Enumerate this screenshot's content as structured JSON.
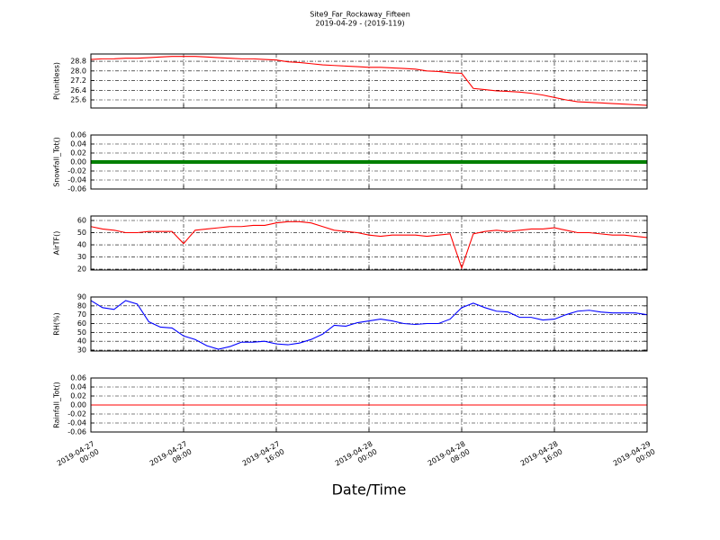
{
  "chart_data": {
    "type": "multi-panel",
    "title": "Site9_Far_Rockaway_Fifteen",
    "subtitle": "2019-04-29 - (2019-119)",
    "xlabel": "Date/Time",
    "xlim": [
      "2019-04-27 00:00",
      "2019-04-29 00:00"
    ],
    "xticks": [
      "2019-04-27 00:00",
      "2019-04-27 08:00",
      "2019-04-27 16:00",
      "2019-04-28 00:00",
      "2019-04-28 08:00",
      "2019-04-28 16:00",
      "2019-04-29 00:00"
    ],
    "grid": true,
    "x": [
      "2019-04-27 00:00",
      "2019-04-27 01:00",
      "2019-04-27 02:00",
      "2019-04-27 03:00",
      "2019-04-27 04:00",
      "2019-04-27 05:00",
      "2019-04-27 06:00",
      "2019-04-27 07:00",
      "2019-04-27 08:00",
      "2019-04-27 09:00",
      "2019-04-27 10:00",
      "2019-04-27 11:00",
      "2019-04-27 12:00",
      "2019-04-27 13:00",
      "2019-04-27 14:00",
      "2019-04-27 15:00",
      "2019-04-27 16:00",
      "2019-04-27 17:00",
      "2019-04-27 18:00",
      "2019-04-27 19:00",
      "2019-04-27 20:00",
      "2019-04-27 21:00",
      "2019-04-27 22:00",
      "2019-04-27 23:00",
      "2019-04-28 00:00",
      "2019-04-28 01:00",
      "2019-04-28 02:00",
      "2019-04-28 03:00",
      "2019-04-28 04:00",
      "2019-04-28 05:00",
      "2019-04-28 06:00",
      "2019-04-28 07:00",
      "2019-04-28 08:00",
      "2019-04-28 09:00",
      "2019-04-28 10:00",
      "2019-04-28 11:00",
      "2019-04-28 12:00",
      "2019-04-28 13:00",
      "2019-04-28 14:00",
      "2019-04-28 15:00",
      "2019-04-28 16:00",
      "2019-04-28 17:00",
      "2019-04-28 18:00",
      "2019-04-28 19:00",
      "2019-04-28 20:00",
      "2019-04-28 21:00",
      "2019-04-28 22:00",
      "2019-04-28 23:00",
      "2019-04-29 00:00"
    ],
    "panels": [
      {
        "type": "line",
        "ylabel": "P(unitless)",
        "ylim": [
          24.93,
          29.4
        ],
        "yticks": [
          25.6,
          26.4,
          27.2,
          {
            "value": 28.0,
            "label": "28.0"
          },
          28.8
        ],
        "series": [
          {
            "color": "#ff0000",
            "values": [
              28.95,
              29.0,
              29.0,
              29.05,
              29.05,
              29.1,
              29.15,
              29.2,
              29.2,
              29.2,
              29.15,
              29.1,
              29.05,
              29.0,
              29.0,
              28.95,
              28.9,
              28.75,
              28.7,
              28.6,
              28.5,
              28.45,
              28.4,
              28.35,
              28.3,
              28.3,
              28.25,
              28.2,
              28.15,
              28.0,
              27.95,
              27.85,
              27.8,
              26.55,
              26.45,
              26.35,
              26.3,
              26.25,
              26.15,
              26.0,
              25.8,
              25.6,
              25.45,
              25.4,
              25.35,
              25.3,
              25.25,
              25.2,
              25.15
            ]
          }
        ]
      },
      {
        "type": "line",
        "ylabel": "Snowfall_Tot()",
        "ylim": [
          -0.06,
          0.06
        ],
        "yticks": [
          -0.06,
          -0.04,
          -0.02,
          {
            "value": 0,
            "label": "0.00"
          },
          0.02,
          0.04,
          0.06
        ],
        "series": [
          {
            "color": "#008000",
            "values": [
              0,
              0,
              0,
              0,
              0,
              0,
              0,
              0,
              0,
              0,
              0,
              0,
              0,
              0,
              0,
              0,
              0,
              0,
              0,
              0,
              0,
              0,
              0,
              0,
              0,
              0,
              0,
              0,
              0,
              0,
              0,
              0,
              0,
              0,
              0,
              0,
              0,
              0,
              0,
              0,
              0,
              0,
              0,
              0,
              0,
              0,
              0,
              0,
              0
            ]
          }
        ]
      },
      {
        "type": "line",
        "ylabel": "AirTF()",
        "ylim": [
          19.3,
          63.7
        ],
        "yticks": [
          20,
          30,
          40,
          50,
          60
        ],
        "series": [
          {
            "color": "#ff0000",
            "values": [
              55,
              53,
              52,
              50,
              50,
              51,
              51,
              51,
              41,
              52,
              53,
              54,
              55,
              55,
              56,
              56,
              58,
              59,
              59,
              58,
              55,
              52,
              51,
              50,
              48,
              47,
              48,
              48,
              48,
              47,
              48,
              49,
              21,
              49,
              51,
              52,
              51,
              52,
              53,
              53,
              54,
              52,
              50,
              50,
              49,
              48,
              48,
              47,
              46
            ]
          }
        ]
      },
      {
        "type": "line",
        "ylabel": "RH(%)",
        "ylim": [
          29,
          90
        ],
        "yticks": [
          30,
          40,
          50,
          60,
          70,
          80,
          90
        ],
        "series": [
          {
            "color": "#0000ff",
            "values": [
              86,
              78,
              76,
              86,
              82,
              62,
              56,
              55,
              46,
              42,
              35,
              31,
              34,
              39,
              39,
              40,
              37,
              36,
              38,
              42,
              48,
              58,
              57,
              61,
              63,
              65,
              63,
              60,
              59,
              60,
              60,
              65,
              78,
              83,
              78,
              74,
              73,
              67,
              67,
              64,
              65,
              70,
              74,
              75,
              73,
              72,
              72,
              72,
              70
            ]
          }
        ]
      },
      {
        "type": "line",
        "ylabel": "Rainfall_Tot()",
        "ylim": [
          -0.06,
          0.06
        ],
        "yticks": [
          -0.06,
          -0.04,
          -0.02,
          {
            "value": 0,
            "label": "0.00"
          },
          0.02,
          0.04,
          0.06
        ],
        "series": [
          {
            "color": "#ff0000",
            "values": [
              0,
              0,
              0,
              0,
              0,
              0,
              0,
              0,
              0,
              0,
              0,
              0,
              0,
              0,
              0,
              0,
              0,
              0,
              0,
              0,
              0,
              0,
              0,
              0,
              0,
              0,
              0,
              0,
              0,
              0,
              0,
              0,
              0,
              0,
              0,
              0,
              0,
              0,
              0,
              0,
              0,
              0,
              0,
              0,
              0,
              0,
              0,
              0,
              0
            ]
          }
        ]
      }
    ]
  }
}
